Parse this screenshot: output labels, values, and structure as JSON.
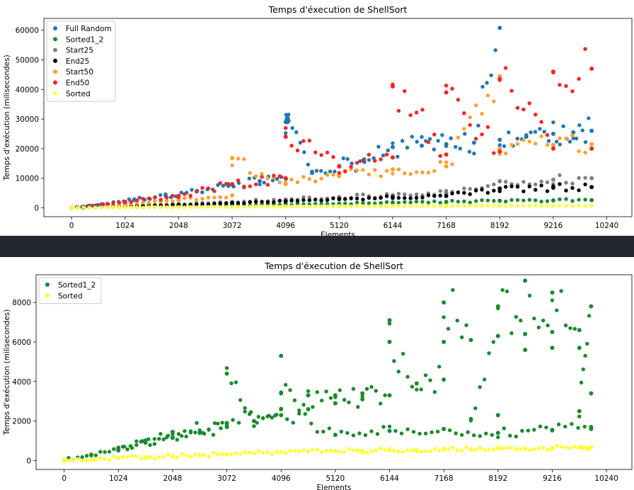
{
  "chart_data": [
    {
      "type": "scatter",
      "title": "Temps d'éxecution de ShellSort",
      "xlabel": "Elements",
      "ylabel": "Temps d'exécution (milisecondes)",
      "xlim": [
        -530,
        10720
      ],
      "ylim": [
        -3000,
        64000
      ],
      "xticks": [
        0,
        1024,
        2048,
        3072,
        4096,
        5120,
        6144,
        7168,
        8192,
        9216,
        10240
      ],
      "yticks": [
        0,
        10000,
        20000,
        30000,
        40000,
        50000,
        60000
      ],
      "grid": false,
      "legend_position": "top-left",
      "series": [
        {
          "name": "Full Random",
          "color": "#1f77b4",
          "points": [
            [
              0,
              0
            ],
            [
              600,
              1200
            ],
            [
              1200,
              2800
            ],
            [
              1800,
              4000
            ],
            [
              2400,
              5600
            ],
            [
              3000,
              7400
            ],
            [
              3600,
              9000
            ],
            [
              4100,
              9800
            ],
            [
              4096,
              29000
            ],
            [
              4150,
              29400
            ],
            [
              4600,
              11800
            ],
            [
              5120,
              14000
            ],
            [
              5600,
              15500
            ],
            [
              6144,
              20500
            ],
            [
              6700,
              21000
            ],
            [
              7168,
              21500
            ],
            [
              7700,
              22000
            ],
            [
              8192,
              60800
            ],
            [
              8192,
              23000
            ],
            [
              8700,
              24000
            ],
            [
              9216,
              25000
            ],
            [
              9600,
              25500
            ],
            [
              9950,
              26000
            ]
          ]
        },
        {
          "name": "Sorted1_2",
          "color": "#1a8a2b",
          "points": [
            [
              0,
              0
            ],
            [
              1024,
              300
            ],
            [
              2048,
              600
            ],
            [
              3072,
              900
            ],
            [
              4096,
              1100
            ],
            [
              5120,
              1400
            ],
            [
              6144,
              1800
            ],
            [
              7168,
              2000
            ],
            [
              8192,
              2400
            ],
            [
              9216,
              2500
            ],
            [
              9950,
              2600
            ]
          ]
        },
        {
          "name": "Start25",
          "color": "#7f7f7f",
          "points": [
            [
              0,
              0
            ],
            [
              1024,
              600
            ],
            [
              2048,
              1200
            ],
            [
              3072,
              2000
            ],
            [
              4096,
              2800
            ],
            [
              5120,
              3600
            ],
            [
              6144,
              4200
            ],
            [
              7168,
              5000
            ],
            [
              8192,
              9000
            ],
            [
              9216,
              9500
            ],
            [
              9950,
              10000
            ]
          ]
        },
        {
          "name": "End25",
          "color": "#000000",
          "points": [
            [
              0,
              0
            ],
            [
              1024,
              400
            ],
            [
              2048,
              1000
            ],
            [
              3072,
              1600
            ],
            [
              4096,
              2200
            ],
            [
              5120,
              3000
            ],
            [
              6144,
              3600
            ],
            [
              7168,
              4000
            ],
            [
              8192,
              6500
            ],
            [
              9216,
              6800
            ],
            [
              9950,
              7000
            ]
          ]
        },
        {
          "name": "Start50",
          "color": "#ff9f2e",
          "points": [
            [
              0,
              0
            ],
            [
              1024,
              1200
            ],
            [
              2048,
              2600
            ],
            [
              3072,
              4200
            ],
            [
              3072,
              16800
            ],
            [
              4096,
              8000
            ],
            [
              5120,
              11000
            ],
            [
              6144,
              13000
            ],
            [
              7168,
              14000
            ],
            [
              8192,
              44500
            ],
            [
              8192,
              20000
            ],
            [
              9216,
              21000
            ],
            [
              9950,
              21500
            ]
          ]
        },
        {
          "name": "End50",
          "color": "#ff1f1f",
          "points": [
            [
              0,
              0
            ],
            [
              1024,
              2000
            ],
            [
              2048,
              4000
            ],
            [
              3072,
              8000
            ],
            [
              4096,
              10000
            ],
            [
              4096,
              24000
            ],
            [
              5120,
              14000
            ],
            [
              6144,
              17000
            ],
            [
              6144,
              41000
            ],
            [
              7168,
              18000
            ],
            [
              7168,
              39000
            ],
            [
              8192,
              19000
            ],
            [
              8192,
              43500
            ],
            [
              9216,
              20000
            ],
            [
              9216,
              46000
            ],
            [
              9950,
              47000
            ],
            [
              9950,
              20000
            ]
          ]
        },
        {
          "name": "Sorted",
          "color": "#ffff33",
          "points": [
            [
              0,
              0
            ],
            [
              1024,
              100
            ],
            [
              2048,
              200
            ],
            [
              3072,
              300
            ],
            [
              4096,
              400
            ],
            [
              5120,
              500
            ],
            [
              6144,
              550
            ],
            [
              7168,
              600
            ],
            [
              8192,
              650
            ],
            [
              9216,
              700
            ],
            [
              9950,
              750
            ]
          ]
        }
      ]
    },
    {
      "type": "scatter",
      "title": "Temps d'éxecution de ShellSort",
      "xlabel": "Elements",
      "ylabel": "Temps d'exécution (milisecondes)",
      "xlim": [
        -530,
        10720
      ],
      "ylim": [
        -450,
        9400
      ],
      "xticks": [
        0,
        1024,
        2048,
        3072,
        4096,
        5120,
        6144,
        7168,
        8192,
        9216,
        10240
      ],
      "yticks": [
        0,
        2000,
        4000,
        6000,
        8000
      ],
      "grid": false,
      "legend_position": "top-left",
      "series": [
        {
          "name": "Sorted1_2",
          "color": "#1a8a2b",
          "points": [
            [
              0,
              0
            ],
            [
              512,
              300
            ],
            [
              1024,
              550
            ],
            [
              1536,
              900
            ],
            [
              2048,
              1150
            ],
            [
              2560,
              1400
            ],
            [
              3072,
              1700
            ],
            [
              3072,
              4400
            ],
            [
              3584,
              2000
            ],
            [
              4096,
              2300
            ],
            [
              4096,
              5300
            ],
            [
              4096,
              3400
            ],
            [
              4608,
              2600
            ],
            [
              4608,
              3300
            ],
            [
              5120,
              2900
            ],
            [
              5120,
              3300
            ],
            [
              5632,
              3100
            ],
            [
              5632,
              3400
            ],
            [
              6144,
              3300
            ],
            [
              6144,
              7100
            ],
            [
              6144,
              6000
            ],
            [
              6656,
              3900
            ],
            [
              7168,
              4100
            ],
            [
              7168,
              6000
            ],
            [
              7168,
              8000
            ],
            [
              7680,
              6100
            ],
            [
              7680,
              2100
            ],
            [
              8192,
              6300
            ],
            [
              8192,
              2300
            ],
            [
              8192,
              7800
            ],
            [
              8704,
              6400
            ],
            [
              8704,
              5600
            ],
            [
              8704,
              9100
            ],
            [
              9216,
              6500
            ],
            [
              9216,
              5700
            ],
            [
              9216,
              8500
            ],
            [
              9728,
              6600
            ],
            [
              9728,
              5700
            ],
            [
              9728,
              2500
            ],
            [
              9950,
              7800
            ],
            [
              9950,
              3400
            ],
            [
              9950,
              1600
            ],
            [
              1024,
              650
            ],
            [
              2048,
              1450
            ],
            [
              3072,
              1900
            ],
            [
              4096,
              2600
            ],
            [
              5120,
              1300
            ],
            [
              6144,
              1500
            ],
            [
              7168,
              1600
            ],
            [
              8192,
              1400
            ],
            [
              9216,
              1550
            ],
            [
              9950,
              1700
            ]
          ]
        },
        {
          "name": "Sorted",
          "color": "#ffff33",
          "points": [
            [
              0,
              0
            ],
            [
              512,
              60
            ],
            [
              1024,
              120
            ],
            [
              1536,
              170
            ],
            [
              2048,
              220
            ],
            [
              2560,
              280
            ],
            [
              3072,
              330
            ],
            [
              3584,
              380
            ],
            [
              4096,
              440
            ],
            [
              4608,
              460
            ],
            [
              5120,
              480
            ],
            [
              5632,
              500
            ],
            [
              6144,
              520
            ],
            [
              6656,
              540
            ],
            [
              7168,
              560
            ],
            [
              7680,
              580
            ],
            [
              8192,
              600
            ],
            [
              8704,
              620
            ],
            [
              9216,
              640
            ],
            [
              9728,
              660
            ],
            [
              9950,
              680
            ]
          ]
        }
      ]
    }
  ]
}
